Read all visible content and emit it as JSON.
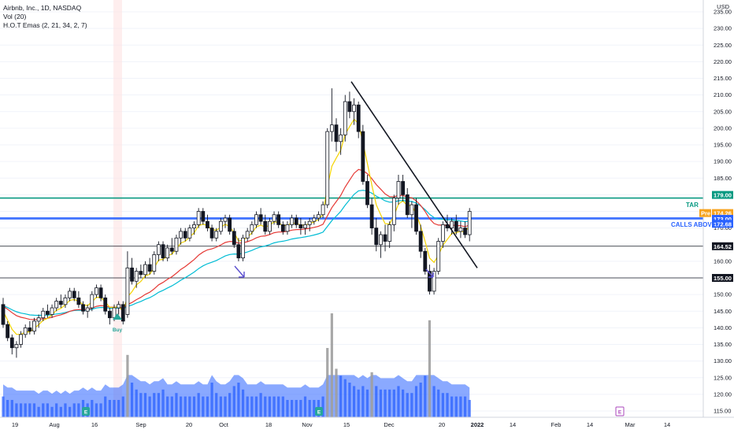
{
  "legend": {
    "symbol": "Airbnb, Inc., 1D, NASDAQ",
    "volume": "Vol (20)",
    "emas": "H.O.T Emas (2, 21, 34, 2, 7)"
  },
  "currency": "USD",
  "price_axis": {
    "ticks": [
      "115.00",
      "120.00",
      "125.00",
      "130.00",
      "135.00",
      "140.00",
      "145.00",
      "150.00",
      "155.00",
      "160.00",
      "165.00",
      "170.00",
      "175.00",
      "180.00",
      "185.00",
      "190.00",
      "195.00",
      "200.00",
      "205.00",
      "210.00",
      "215.00",
      "220.00",
      "225.00",
      "230.00",
      "235.00"
    ],
    "tick_values": [
      115,
      120,
      125,
      130,
      135,
      140,
      145,
      150,
      155,
      160,
      165,
      170,
      175,
      180,
      185,
      190,
      195,
      200,
      205,
      210,
      215,
      220,
      225,
      230,
      235
    ],
    "range": [
      113,
      236
    ]
  },
  "time_axis": {
    "ticks": [
      "19",
      "Aug",
      "16",
      "Sep",
      "20",
      "Oct",
      "18",
      "Nov",
      "15",
      "Dec",
      "20",
      "2022",
      "14",
      "Feb",
      "14",
      "Mar",
      "14"
    ]
  },
  "price_tags": [
    {
      "text": "179.00",
      "value": 179.0,
      "color": "#089981"
    },
    {
      "text": "174.26",
      "value": 174.26,
      "color": "#f7a21b",
      "badge": "Pre"
    },
    {
      "text": "173.00",
      "value": 173.0,
      "color": "#2962ff"
    },
    {
      "text": "172.68",
      "value": 172.68,
      "color": "#2962ff"
    },
    {
      "text": "164.52",
      "value": 164.52,
      "color": "#131722"
    },
    {
      "text": "155.00",
      "value": 155.0,
      "color": "#131722"
    }
  ],
  "horizontal_lines": [
    {
      "value": 179.0,
      "color": "#089981",
      "width": 1.6
    },
    {
      "value": 173.0,
      "color": "#2962ff",
      "width": 1.6
    },
    {
      "value": 172.68,
      "color": "#2962ff",
      "width": 1.0
    },
    {
      "value": 164.52,
      "color": "#131722",
      "width": 0.8
    },
    {
      "value": 155.0,
      "color": "#131722",
      "width": 0.8
    }
  ],
  "line_labels": {
    "target": "TAR",
    "calls_above": "CALLS ABOVE"
  },
  "signal_label": "Buy",
  "event_markers": [
    "E",
    "E",
    "E"
  ],
  "trendline": {
    "start_date": "Nov 12",
    "start_price": 214.0,
    "end_date": "Dec 30",
    "end_price": 158.0
  },
  "chart_data": {
    "type": "candlestick",
    "symbol": "ABNB",
    "interval": "1D",
    "ylim": [
      113,
      236
    ],
    "candles": [
      [
        147,
        149,
        140,
        141
      ],
      [
        141,
        142,
        136,
        137
      ],
      [
        137,
        138,
        132,
        134
      ],
      [
        134,
        136,
        131,
        135
      ],
      [
        135,
        139,
        134,
        138
      ],
      [
        138,
        141,
        137,
        140
      ],
      [
        140,
        142,
        138,
        139
      ],
      [
        139,
        143,
        138,
        142
      ],
      [
        142,
        144,
        140,
        143
      ],
      [
        143,
        146,
        142,
        145
      ],
      [
        145,
        147,
        143,
        144
      ],
      [
        144,
        147,
        143,
        146
      ],
      [
        146,
        149,
        145,
        148
      ],
      [
        148,
        150,
        146,
        147
      ],
      [
        147,
        150,
        146,
        149
      ],
      [
        149,
        152,
        148,
        151
      ],
      [
        151,
        152,
        148,
        149
      ],
      [
        149,
        151,
        146,
        147
      ],
      [
        147,
        148,
        144,
        145
      ],
      [
        145,
        147,
        143,
        146
      ],
      [
        146,
        151,
        145,
        150
      ],
      [
        150,
        153,
        149,
        152
      ],
      [
        152,
        153,
        148,
        149
      ],
      [
        149,
        150,
        144,
        145
      ],
      [
        145,
        146,
        141,
        143
      ],
      [
        143,
        147,
        142,
        146
      ],
      [
        146,
        148,
        144,
        147
      ],
      [
        147,
        148,
        141,
        142
      ],
      [
        144,
        163,
        143,
        158
      ],
      [
        158,
        161,
        153,
        154
      ],
      [
        154,
        158,
        152,
        157
      ],
      [
        157,
        159,
        155,
        156
      ],
      [
        156,
        160,
        155,
        159
      ],
      [
        159,
        161,
        156,
        157
      ],
      [
        157,
        163,
        156,
        162
      ],
      [
        162,
        166,
        160,
        165
      ],
      [
        165,
        166,
        160,
        161
      ],
      [
        161,
        165,
        160,
        164
      ],
      [
        164,
        167,
        162,
        163
      ],
      [
        163,
        168,
        162,
        167
      ],
      [
        167,
        170,
        165,
        169
      ],
      [
        169,
        170,
        166,
        167
      ],
      [
        167,
        171,
        166,
        170
      ],
      [
        170,
        172,
        168,
        171
      ],
      [
        171,
        176,
        170,
        175
      ],
      [
        175,
        176,
        171,
        172
      ],
      [
        172,
        174,
        169,
        170
      ],
      [
        170,
        171,
        166,
        167
      ],
      [
        167,
        170,
        166,
        169
      ],
      [
        169,
        173,
        168,
        172
      ],
      [
        172,
        174,
        170,
        173
      ],
      [
        173,
        174,
        168,
        169
      ],
      [
        169,
        170,
        164,
        165
      ],
      [
        165,
        167,
        160,
        161
      ],
      [
        161,
        168,
        160,
        167
      ],
      [
        167,
        170,
        166,
        169
      ],
      [
        169,
        172,
        168,
        171
      ],
      [
        171,
        175,
        170,
        174
      ],
      [
        174,
        176,
        171,
        172
      ],
      [
        172,
        174,
        168,
        169
      ],
      [
        169,
        173,
        168,
        172
      ],
      [
        172,
        175,
        171,
        174
      ],
      [
        174,
        175,
        170,
        171
      ],
      [
        171,
        172,
        168,
        169
      ],
      [
        169,
        172,
        168,
        171
      ],
      [
        171,
        174,
        170,
        173
      ],
      [
        173,
        174,
        170,
        171
      ],
      [
        171,
        173,
        168,
        170
      ],
      [
        170,
        172,
        168,
        171
      ],
      [
        171,
        173,
        169,
        172
      ],
      [
        172,
        174,
        171,
        173
      ],
      [
        173,
        175,
        172,
        174
      ],
      [
        174,
        178,
        173,
        177
      ],
      [
        177,
        200,
        176,
        199
      ],
      [
        199,
        212,
        196,
        201
      ],
      [
        201,
        203,
        193,
        196
      ],
      [
        196,
        200,
        192,
        198
      ],
      [
        198,
        210,
        196,
        208
      ],
      [
        208,
        211,
        203,
        205
      ],
      [
        205,
        209,
        201,
        207
      ],
      [
        207,
        208,
        197,
        199
      ],
      [
        199,
        201,
        183,
        184
      ],
      [
        184,
        186,
        176,
        177
      ],
      [
        177,
        179,
        168,
        170
      ],
      [
        170,
        173,
        163,
        165
      ],
      [
        165,
        169,
        161,
        168
      ],
      [
        168,
        171,
        163,
        166
      ],
      [
        166,
        172,
        164,
        171
      ],
      [
        171,
        180,
        169,
        179
      ],
      [
        179,
        186,
        177,
        184
      ],
      [
        184,
        186,
        178,
        180
      ],
      [
        180,
        182,
        173,
        174
      ],
      [
        174,
        178,
        170,
        177
      ],
      [
        177,
        179,
        168,
        169
      ],
      [
        169,
        171,
        161,
        163
      ],
      [
        163,
        164,
        156,
        157
      ],
      [
        157,
        159,
        150,
        151
      ],
      [
        151,
        158,
        150,
        157
      ],
      [
        157,
        167,
        156,
        166
      ],
      [
        166,
        172,
        164,
        171
      ],
      [
        171,
        174,
        169,
        170
      ],
      [
        170,
        173,
        168,
        172
      ],
      [
        172,
        174,
        168,
        169
      ],
      [
        169,
        172,
        167,
        170
      ],
      [
        170,
        172,
        167,
        168
      ],
      [
        168,
        176,
        166,
        175
      ]
    ],
    "volume": [
      6,
      5,
      5,
      4,
      4,
      4,
      4,
      4,
      3,
      4,
      4,
      3,
      4,
      3,
      4,
      3,
      4,
      4,
      5,
      4,
      5,
      4,
      4,
      6,
      5,
      5,
      5,
      6,
      18,
      10,
      8,
      7,
      7,
      6,
      7,
      7,
      8,
      6,
      6,
      7,
      6,
      6,
      6,
      6,
      7,
      6,
      6,
      10,
      7,
      6,
      6,
      7,
      9,
      10,
      8,
      6,
      6,
      6,
      7,
      6,
      6,
      6,
      6,
      6,
      5,
      5,
      5,
      5,
      6,
      5,
      5,
      5,
      6,
      20,
      30,
      14,
      12,
      11,
      10,
      9,
      8,
      9,
      8,
      13,
      9,
      8,
      8,
      8,
      8,
      9,
      8,
      7,
      7,
      9,
      10,
      12,
      28,
      9,
      8,
      7,
      7,
      6,
      6,
      6,
      6,
      5
    ],
    "ema_fast": "yellow",
    "ema_21": "red",
    "ema_34": "teal"
  },
  "colors": {
    "ema_fast": "#f5d300",
    "ema_21": "#e53935",
    "ema_34": "#00bcd4",
    "volume_area": "#2962ff",
    "candle_up": "#ffffff",
    "candle_down": "#131722",
    "annotation": "#5b4fcf"
  }
}
